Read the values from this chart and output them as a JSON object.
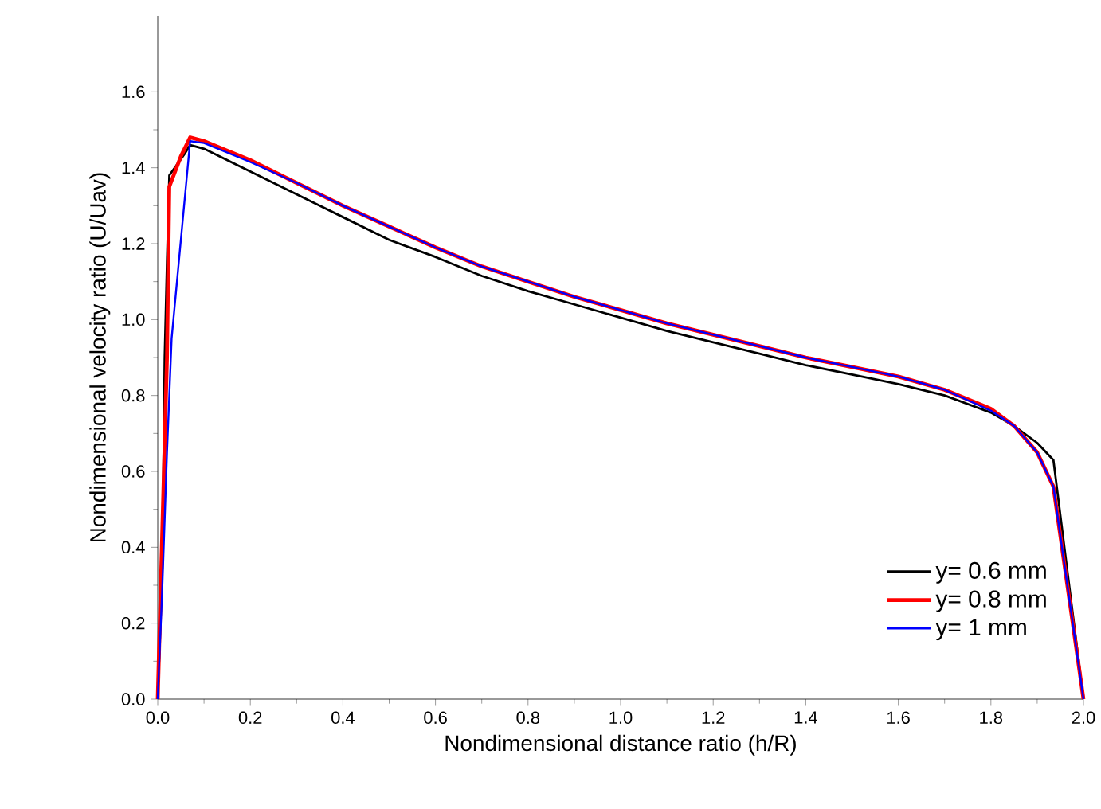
{
  "chart_data": {
    "type": "line",
    "xlabel": "Nondimensional distance ratio (h/R)",
    "ylabel": "Nondimensional velocity ratio (U/Uav)",
    "xlim": [
      0,
      2.0
    ],
    "ylim": [
      0,
      1.8
    ],
    "xticks": [
      {
        "value": 0,
        "label": "0.0"
      },
      0.2,
      0.4,
      0.6,
      0.8,
      {
        "value": 1,
        "label": "1.0"
      },
      1.2,
      1.4,
      1.6,
      1.8,
      {
        "value": 2,
        "label": "2.0"
      }
    ],
    "yticks": [
      {
        "value": 0,
        "label": "0.0"
      },
      0.2,
      0.4,
      0.6,
      0.8,
      {
        "value": 1,
        "label": "1.0"
      },
      1.2,
      1.4,
      1.6
    ],
    "legend": "bottom right",
    "grid": false,
    "marker": "none",
    "line_style": "solid",
    "series": [
      {
        "name": "y= 0.6 mm",
        "color": "#000000",
        "x": [
          0,
          0.01,
          0.015,
          0.02,
          0.025,
          0.06,
          0.07,
          0.1,
          0.2,
          0.3,
          0.4,
          0.5,
          0.6,
          0.7,
          0.8,
          0.9,
          1.0,
          1.1,
          1.2,
          1.3,
          1.4,
          1.5,
          1.6,
          1.7,
          1.8,
          1.85,
          1.9,
          1.935,
          2.0
        ],
        "values": [
          0,
          0.35,
          0.9,
          1.15,
          1.38,
          1.44,
          1.46,
          1.45,
          1.39,
          1.33,
          1.27,
          1.21,
          1.165,
          1.115,
          1.075,
          1.04,
          1.005,
          0.97,
          0.94,
          0.91,
          0.88,
          0.855,
          0.83,
          0.8,
          0.755,
          0.72,
          0.675,
          0.63,
          0
        ]
      },
      {
        "name": "y= 0.8 mm",
        "color": "#ff0000",
        "x": [
          0,
          0.02,
          0.025,
          0.05,
          0.07,
          0.1,
          0.2,
          0.3,
          0.4,
          0.5,
          0.6,
          0.7,
          0.8,
          0.9,
          1.0,
          1.1,
          1.2,
          1.3,
          1.4,
          1.5,
          1.6,
          1.7,
          1.8,
          1.85,
          1.9,
          1.935,
          2.0
        ],
        "values": [
          0,
          0.9,
          1.35,
          1.43,
          1.48,
          1.47,
          1.42,
          1.36,
          1.3,
          1.245,
          1.19,
          1.14,
          1.1,
          1.06,
          1.025,
          0.99,
          0.96,
          0.93,
          0.9,
          0.875,
          0.85,
          0.815,
          0.765,
          0.72,
          0.65,
          0.56,
          0
        ]
      },
      {
        "name": "y= 1 mm",
        "color": "#0000ff",
        "x": [
          0,
          0.01,
          0.02,
          0.03,
          0.07,
          0.1,
          0.2,
          0.3,
          0.4,
          0.5,
          0.6,
          0.7,
          0.8,
          0.9,
          1.0,
          1.1,
          1.2,
          1.3,
          1.4,
          1.5,
          1.6,
          1.7,
          1.8,
          1.85,
          1.9,
          1.935,
          2.0
        ],
        "values": [
          0,
          0.3,
          0.65,
          0.95,
          1.47,
          1.465,
          1.415,
          1.36,
          1.3,
          1.245,
          1.19,
          1.14,
          1.1,
          1.06,
          1.025,
          0.99,
          0.96,
          0.93,
          0.9,
          0.875,
          0.85,
          0.815,
          0.76,
          0.72,
          0.65,
          0.56,
          0
        ]
      }
    ]
  }
}
